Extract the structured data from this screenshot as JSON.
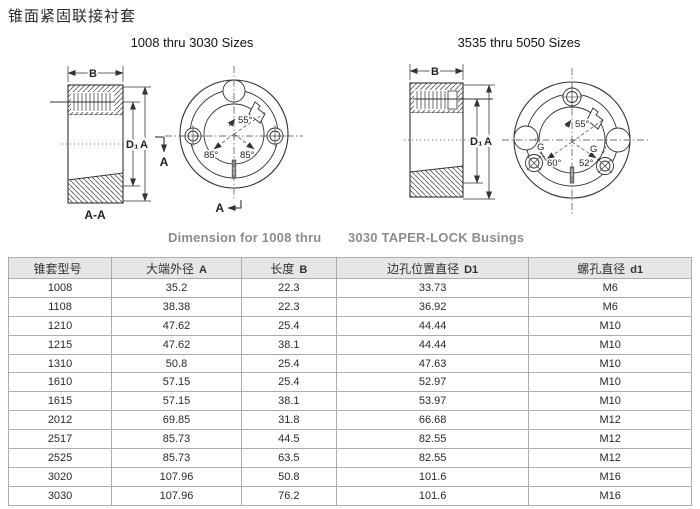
{
  "page": {
    "title": "锥面紧固联接衬套"
  },
  "drawings": {
    "left": {
      "subtitle": "1008 thru 3030 Sizes",
      "labels": {
        "b": "B",
        "d1": "D₁",
        "a": "A",
        "section": "A-A",
        "section_arrow_side": "A",
        "section_arrow_bottom": "A",
        "angle55": "55°",
        "angle85_left": "85°",
        "angle85_right": "85°"
      }
    },
    "right": {
      "subtitle": "3535 thru 5050 Sizes",
      "labels": {
        "b": "B",
        "d1": "D₁",
        "a": "A",
        "angle55": "55°",
        "angle60": "60°",
        "angle52": "52°",
        "g_left": "G",
        "g_right": "G"
      }
    },
    "caption_left": "Dimension for 1008 thru",
    "caption_right": "3030 TAPER-LOCK Busings"
  },
  "table": {
    "headers": [
      {
        "cn": "锥套型号",
        "en": ""
      },
      {
        "cn": "大端外径",
        "en": "A"
      },
      {
        "cn": "长度",
        "en": "B"
      },
      {
        "cn": "边孔位置直径",
        "en": "D1"
      },
      {
        "cn": "螺孔直径",
        "en": "d1"
      }
    ],
    "rows": [
      [
        "1008",
        "35.2",
        "22.3",
        "33.73",
        "M6"
      ],
      [
        "1108",
        "38.38",
        "22.3",
        "36.92",
        "M6"
      ],
      [
        "1210",
        "47.62",
        "25.4",
        "44.44",
        "M10"
      ],
      [
        "1215",
        "47.62",
        "38.1",
        "44.44",
        "M10"
      ],
      [
        "1310",
        "50.8",
        "25.4",
        "47.63",
        "M10"
      ],
      [
        "1610",
        "57.15",
        "25.4",
        "52.97",
        "M10"
      ],
      [
        "1615",
        "57.15",
        "38.1",
        "53.97",
        "M10"
      ],
      [
        "2012",
        "69.85",
        "31.8",
        "66.68",
        "M12"
      ],
      [
        "2517",
        "85.73",
        "44.5",
        "82.55",
        "M12"
      ],
      [
        "2525",
        "85.73",
        "63.5",
        "82.55",
        "M12"
      ],
      [
        "3020",
        "107.96",
        "50.8",
        "101.6",
        "M16"
      ],
      [
        "3030",
        "107.96",
        "76.2",
        "101.6",
        "M16"
      ]
    ]
  },
  "colors": {
    "caption_gray": "#8c8c8c",
    "table_header_bg": "#e6e6e6",
    "table_border": "#8f8f8f",
    "line": "#333333"
  }
}
